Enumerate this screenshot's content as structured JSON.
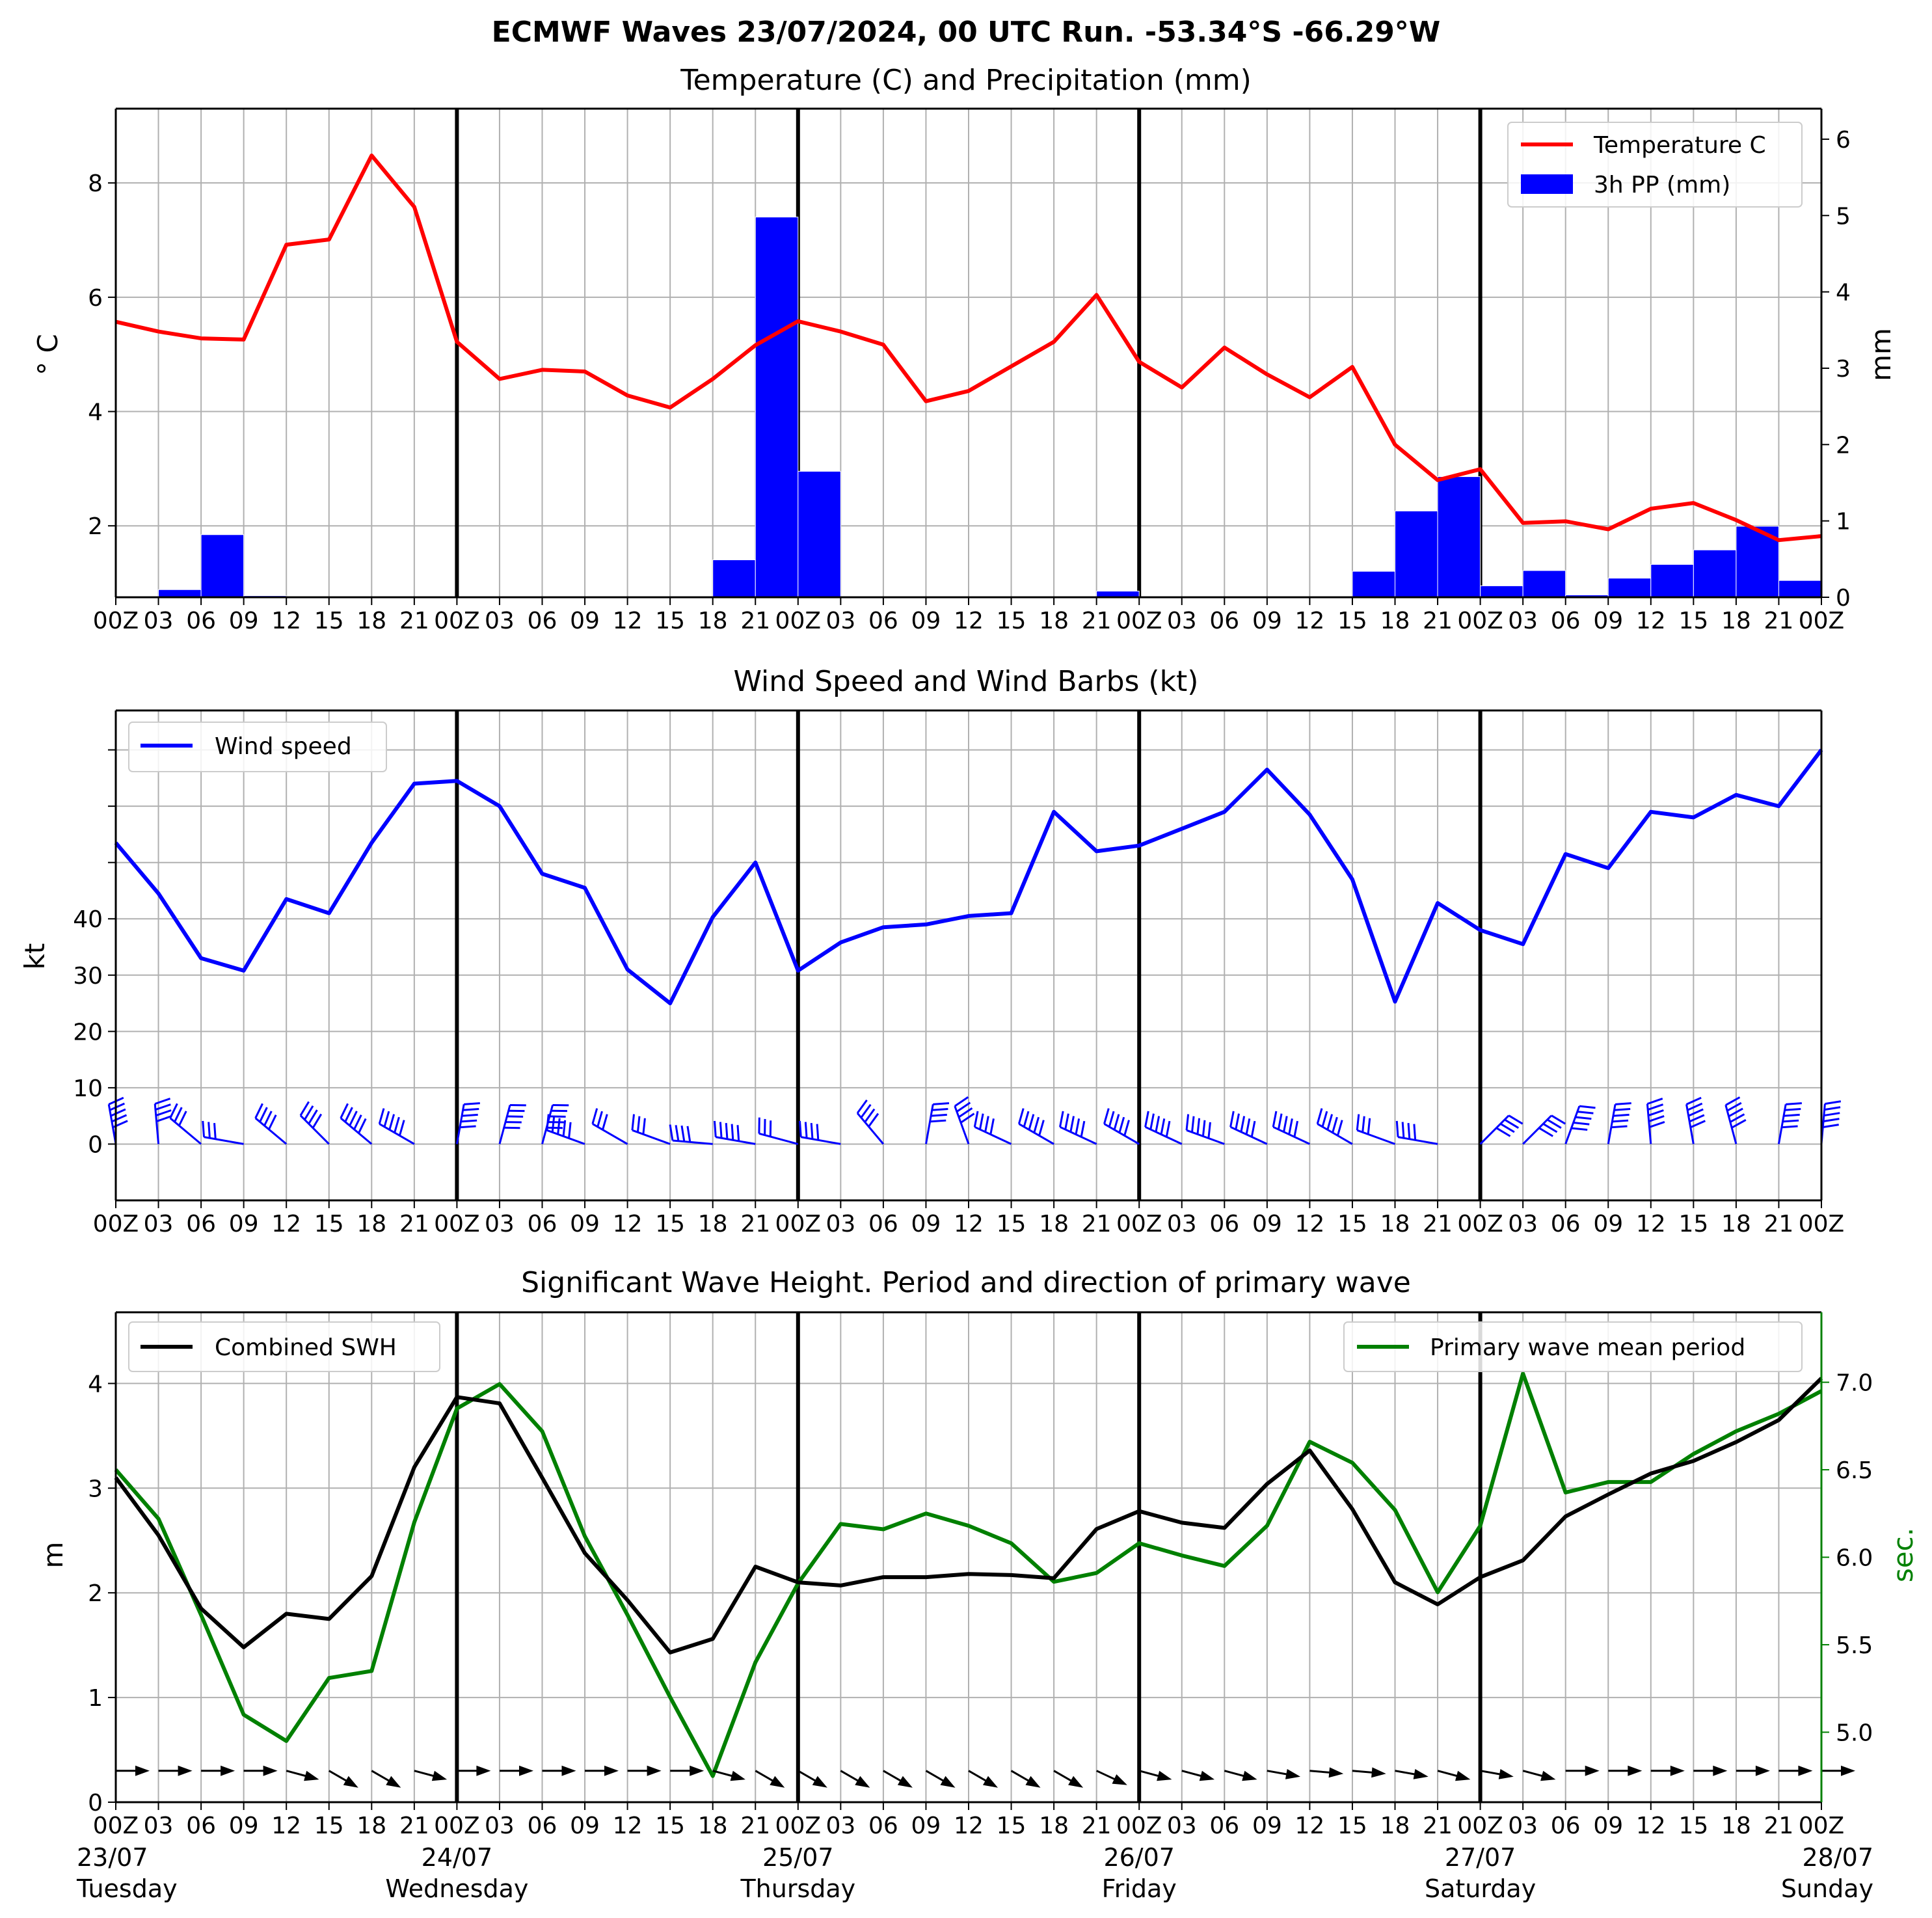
{
  "title": "ECMWF Waves 23/07/2024, 00 UTC Run. -53.34°S -66.29°W",
  "x_labels": [
    "00Z",
    "03",
    "06",
    "09",
    "12",
    "15",
    "18",
    "21",
    "00Z",
    "03",
    "06",
    "09",
    "12",
    "15",
    "18",
    "21",
    "00Z",
    "03",
    "06",
    "09",
    "12",
    "15",
    "18",
    "21",
    "00Z",
    "03",
    "06",
    "09",
    "12",
    "15",
    "18",
    "21",
    "00Z",
    "03",
    "06",
    "09",
    "12",
    "15",
    "18",
    "21",
    "00Z"
  ],
  "date_labels": [
    {
      "date": "23/07",
      "day": "Tuesday"
    },
    {
      "date": "24/07",
      "day": "Wednesday"
    },
    {
      "date": "25/07",
      "day": "Thursday"
    },
    {
      "date": "26/07",
      "day": "Friday"
    },
    {
      "date": "27/07",
      "day": "Saturday"
    },
    {
      "date": "28/07",
      "day": "Sunday"
    }
  ],
  "colors": {
    "temperature": "#ff0000",
    "precip": "#0000ff",
    "wind": "#0000ff",
    "swh": "#000000",
    "period": "#008000",
    "grid": "#b0b0b0"
  },
  "chart_data": [
    {
      "type": "line",
      "title": "Temperature (C) and Precipitation (mm)",
      "ylabel": "° C",
      "ylabel_right": "mm",
      "ylim": [
        0.75,
        9.3
      ],
      "ylim_right": [
        0,
        6.4
      ],
      "yticks": [
        2,
        4,
        6,
        8
      ],
      "yticks_right": [
        0,
        1,
        2,
        3,
        4,
        5,
        6
      ],
      "legend_position": "top-right",
      "grid": true,
      "series": [
        {
          "name": "Temperature C",
          "axis": "left",
          "kind": "line",
          "values": [
            5.57,
            5.4,
            5.28,
            5.26,
            6.92,
            7.01,
            8.48,
            7.58,
            5.22,
            4.57,
            4.73,
            4.7,
            4.28,
            4.07,
            4.57,
            5.16,
            5.58,
            5.4,
            5.17,
            4.18,
            4.36,
            4.79,
            5.22,
            6.04,
            4.87,
            4.42,
            5.12,
            4.65,
            4.25,
            4.78,
            3.42,
            2.8,
            2.99,
            2.05,
            2.08,
            1.94,
            2.3,
            2.4,
            2.1,
            1.75,
            1.82
          ]
        },
        {
          "name": "3h PP (mm)",
          "axis": "right",
          "kind": "bar",
          "values": [
            0,
            0.1,
            0.82,
            0.02,
            0,
            0,
            0,
            0,
            0,
            0,
            0,
            0,
            0,
            0,
            0.49,
            4.98,
            1.65,
            0,
            0,
            0,
            0,
            0,
            0,
            0.08,
            0,
            0,
            0,
            0,
            0,
            0.34,
            1.13,
            1.58,
            0.15,
            0.35,
            0.03,
            0.25,
            0.43,
            0.62,
            0.93,
            0.22
          ]
        }
      ]
    },
    {
      "type": "line",
      "title": "Wind Speed and Wind Barbs (kt)",
      "ylabel": "kt",
      "ylim": [
        -10,
        77
      ],
      "yticks": [
        0,
        10,
        20,
        30,
        40
      ],
      "yticks_unlabeled": [
        50,
        60,
        70
      ],
      "legend_position": "top-left",
      "grid": true,
      "series": [
        {
          "name": "Wind speed",
          "values": [
            53.5,
            44.5,
            33,
            30.8,
            43.5,
            41,
            53.5,
            64,
            64.5,
            60,
            48,
            45.5,
            31,
            25,
            40.3,
            50,
            30.8,
            35.8,
            38.5,
            39,
            40.5,
            41,
            59,
            52,
            53,
            56,
            59,
            66.5,
            58.5,
            47,
            25.3,
            42.8,
            38,
            35.5,
            51.5,
            49,
            59,
            58,
            62,
            60,
            70
          ]
        }
      ],
      "wind_barb_angles_deg": [
        -100,
        -95,
        -140,
        -170,
        -140,
        -135,
        -140,
        -150,
        -80,
        -75,
        -75,
        -160,
        -150,
        -160,
        -175,
        -170,
        -165,
        -170,
        -130,
        -80,
        -110,
        -155,
        -150,
        -155,
        -150,
        -155,
        -160,
        -155,
        -155,
        -150,
        -160,
        -170,
        -45,
        -45,
        -70,
        -80,
        -95,
        -100,
        -105,
        -80,
        -85
      ]
    },
    {
      "type": "line",
      "title": "Significant Wave Height. Period and direction of primary wave",
      "ylabel": "m",
      "ylabel_right": "sec.",
      "ylim": [
        0,
        4.68
      ],
      "ylim_right": [
        4.6,
        7.4
      ],
      "yticks": [
        0,
        1,
        2,
        3,
        4
      ],
      "yticks_right": [
        5.0,
        5.5,
        6.0,
        6.5,
        7.0
      ],
      "grid": true,
      "series": [
        {
          "name": "Combined SWH",
          "axis": "left",
          "values": [
            3.1,
            2.55,
            1.85,
            1.48,
            1.8,
            1.75,
            2.16,
            3.2,
            3.87,
            3.81,
            3.1,
            2.38,
            1.93,
            1.43,
            1.56,
            2.25,
            2.1,
            2.07,
            2.15,
            2.15,
            2.18,
            2.17,
            2.14,
            2.61,
            2.78,
            2.67,
            2.62,
            3.04,
            3.36,
            2.8,
            2.1,
            1.89,
            2.15,
            2.31,
            2.73,
            2.94,
            3.14,
            3.26,
            3.44,
            3.65,
            4.05
          ]
        },
        {
          "name": "Primary wave mean period",
          "axis": "right",
          "values": [
            6.5,
            6.22,
            5.67,
            5.1,
            4.95,
            5.31,
            5.35,
            6.2,
            6.85,
            6.99,
            6.72,
            6.12,
            5.67,
            5.2,
            4.75,
            5.4,
            5.85,
            6.19,
            6.16,
            6.25,
            6.18,
            6.08,
            5.86,
            5.91,
            6.08,
            6.01,
            5.95,
            6.18,
            6.66,
            6.54,
            6.27,
            5.8,
            6.18,
            7.05,
            6.37,
            6.43,
            6.43,
            6.59,
            6.72,
            6.82,
            6.95
          ]
        }
      ],
      "wave_direction_angles_deg": [
        0,
        0,
        0,
        0,
        15,
        30,
        30,
        15,
        0,
        0,
        0,
        0,
        0,
        0,
        15,
        30,
        30,
        30,
        30,
        30,
        30,
        30,
        30,
        25,
        15,
        15,
        15,
        10,
        5,
        5,
        10,
        15,
        10,
        15,
        0,
        0,
        0,
        0,
        0,
        0,
        0
      ],
      "legend_swh_position": "top-left",
      "legend_period_position": "top-right"
    }
  ]
}
